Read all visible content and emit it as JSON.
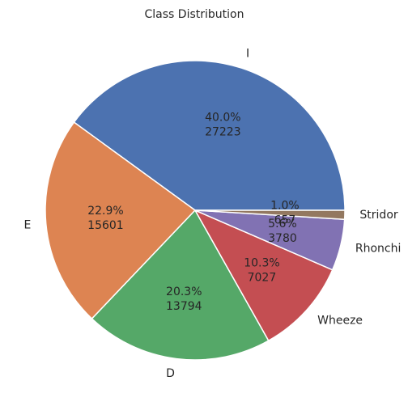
{
  "chart_data": {
    "type": "pie",
    "title": "Class Distribution",
    "categories": [
      "I",
      "E",
      "D",
      "Wheeze",
      "Rhonchi",
      "Stridor"
    ],
    "values": [
      27223,
      15601,
      13794,
      7027,
      3780,
      657
    ],
    "percent_labels": [
      "40.0%",
      "22.9%",
      "20.3%",
      "10.3%",
      "5.6%",
      "1.0%"
    ],
    "colors": [
      "#4c72b0",
      "#dd8452",
      "#55a868",
      "#c44e52",
      "#8172b3",
      "#937860"
    ],
    "start_angle_deg": 0,
    "direction": "counterclockwise"
  }
}
